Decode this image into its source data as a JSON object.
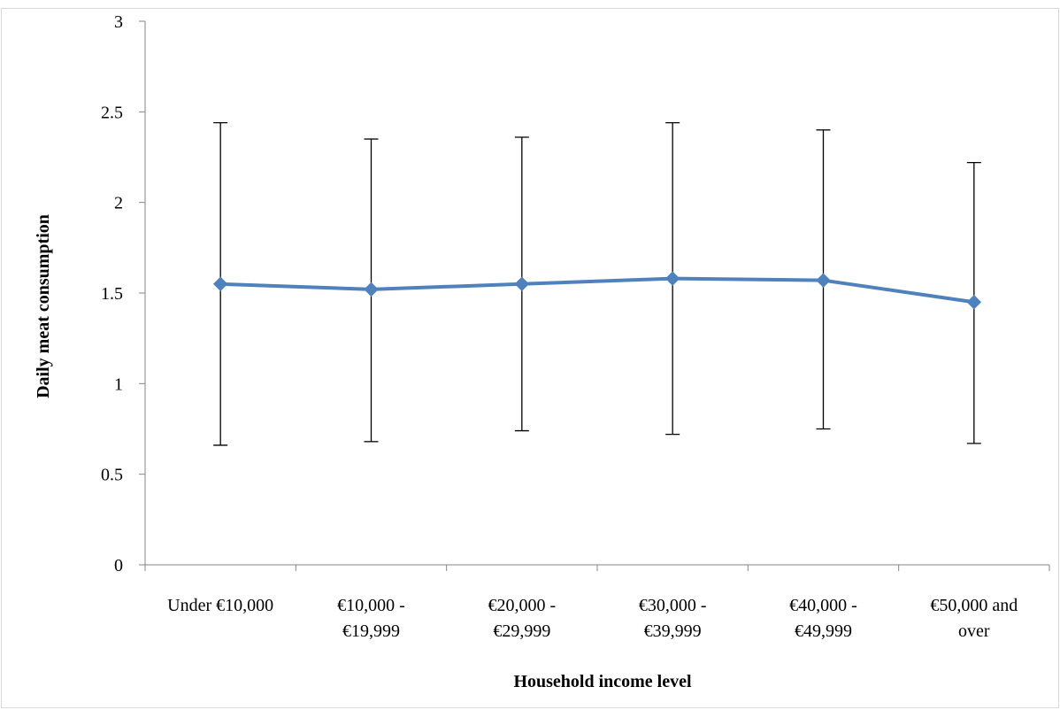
{
  "chart_data": {
    "type": "line",
    "title": "",
    "xlabel": "Household income level",
    "ylabel": "Daily meat consumption",
    "ylim": [
      0,
      3
    ],
    "yticks": [
      "0",
      "0.5",
      "1",
      "1.5",
      "2",
      "2.5",
      "3"
    ],
    "grid": false,
    "legend": "none",
    "categories": [
      [
        "Under €10,000"
      ],
      [
        "€10,000 -",
        "€19,999"
      ],
      [
        "€20,000 -",
        "€29,999"
      ],
      [
        "€30,000 -",
        "€39,999"
      ],
      [
        "€40,000 -",
        "€49,999"
      ],
      [
        "€50,000 and",
        "over"
      ]
    ],
    "series": [
      {
        "values": [
          1.55,
          1.52,
          1.55,
          1.58,
          1.57,
          1.45
        ],
        "error_low": [
          0.66,
          0.68,
          0.74,
          0.72,
          0.75,
          0.67
        ],
        "error_high": [
          2.44,
          2.35,
          2.36,
          2.44,
          2.4,
          2.22
        ],
        "color": "#4f81bd"
      }
    ]
  }
}
